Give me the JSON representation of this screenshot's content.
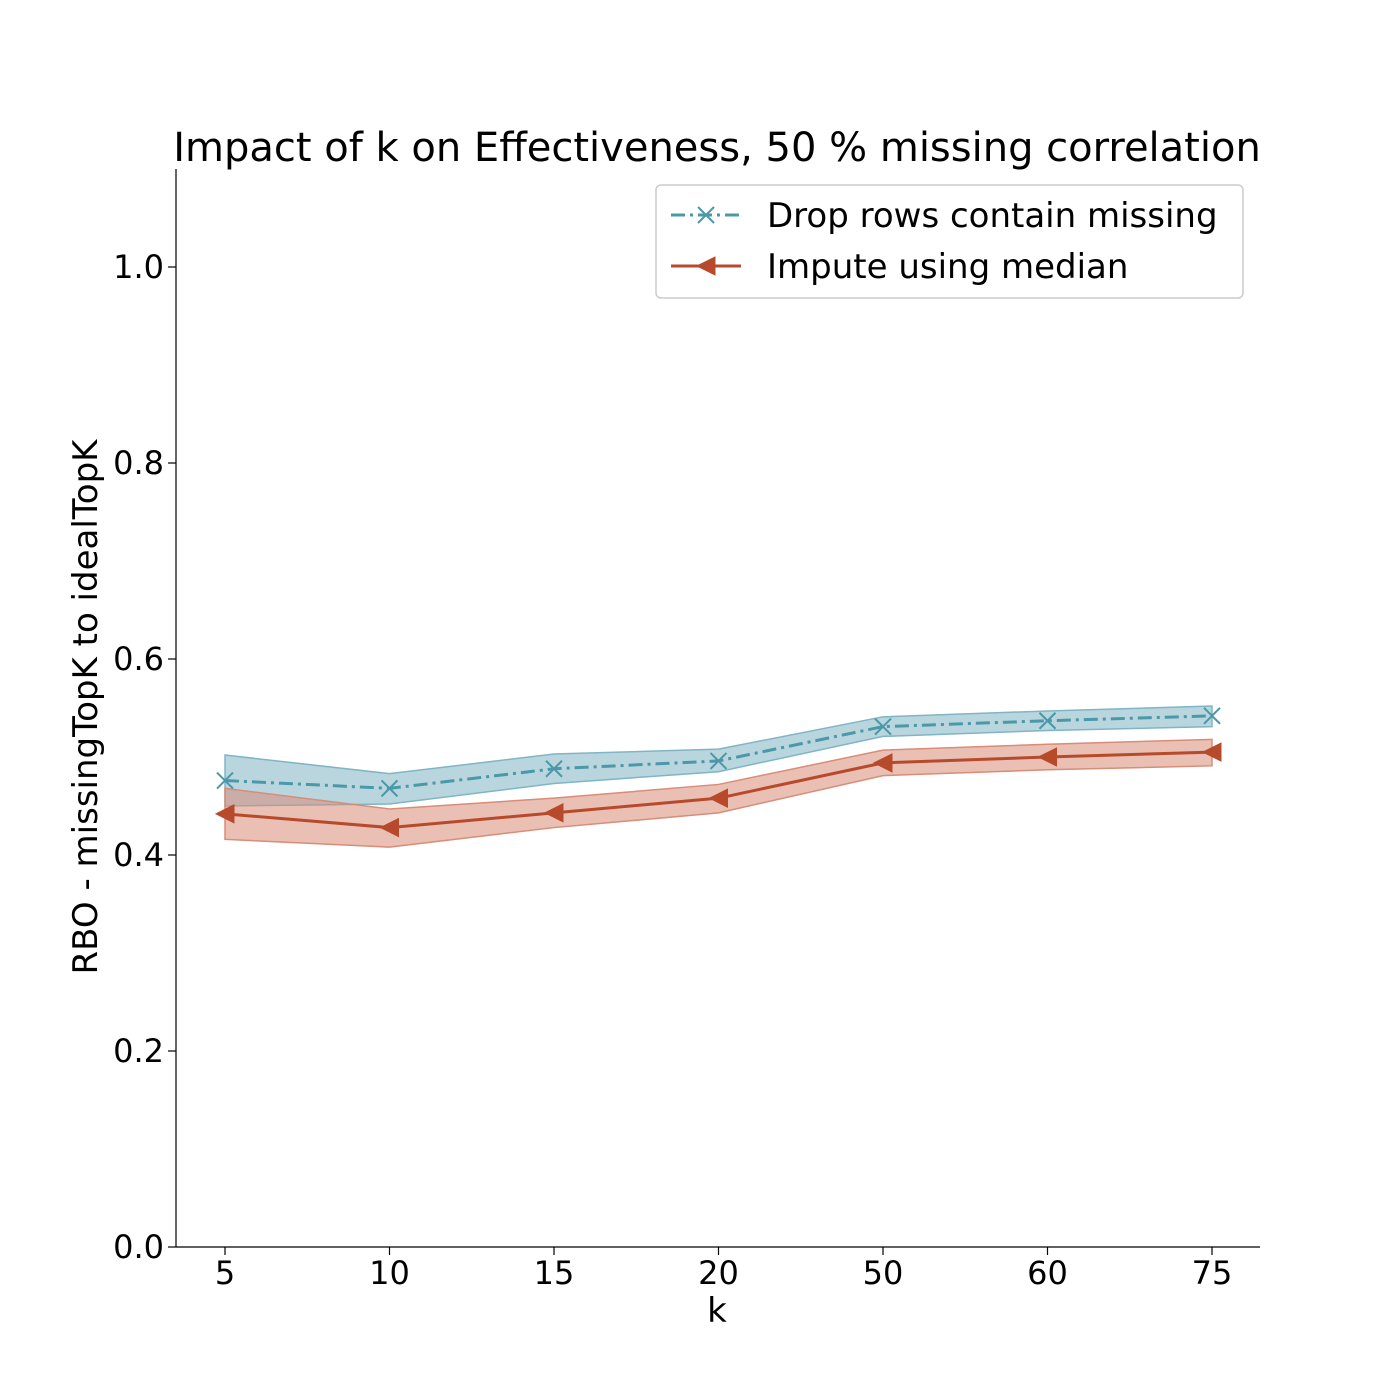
{
  "chart_data": {
    "type": "line",
    "title": "Impact of k on Effectiveness, 50 % missing correlation",
    "xlabel": "k",
    "ylabel": "RBO - missingTopK to idealTopK",
    "categories": [
      "5",
      "10",
      "15",
      "20",
      "50",
      "60",
      "75"
    ],
    "ylim": [
      0,
      1.1
    ],
    "yticks": [
      "0.0",
      "0.2",
      "0.4",
      "0.6",
      "0.8",
      "1.0"
    ],
    "grid": false,
    "legend_position": "top-right",
    "series": [
      {
        "name": "Drop rows contain missing",
        "color": "#4a98a8",
        "band_color": "#7fb5c4",
        "marker": "x",
        "line_style": "dash-dot",
        "values": [
          0.476,
          0.468,
          0.488,
          0.496,
          0.531,
          0.537,
          0.542
        ],
        "lower": [
          0.45,
          0.452,
          0.473,
          0.485,
          0.521,
          0.527,
          0.531
        ],
        "upper": [
          0.502,
          0.483,
          0.503,
          0.508,
          0.541,
          0.547,
          0.552
        ]
      },
      {
        "name": "Impute using median",
        "color": "#b84a2c",
        "band_color": "#d98c76",
        "marker": "triangle-left",
        "line_style": "solid",
        "values": [
          0.442,
          0.428,
          0.443,
          0.458,
          0.494,
          0.5,
          0.505
        ],
        "lower": [
          0.416,
          0.408,
          0.428,
          0.443,
          0.481,
          0.487,
          0.491
        ],
        "upper": [
          0.468,
          0.447,
          0.458,
          0.472,
          0.507,
          0.513,
          0.518
        ]
      }
    ]
  }
}
